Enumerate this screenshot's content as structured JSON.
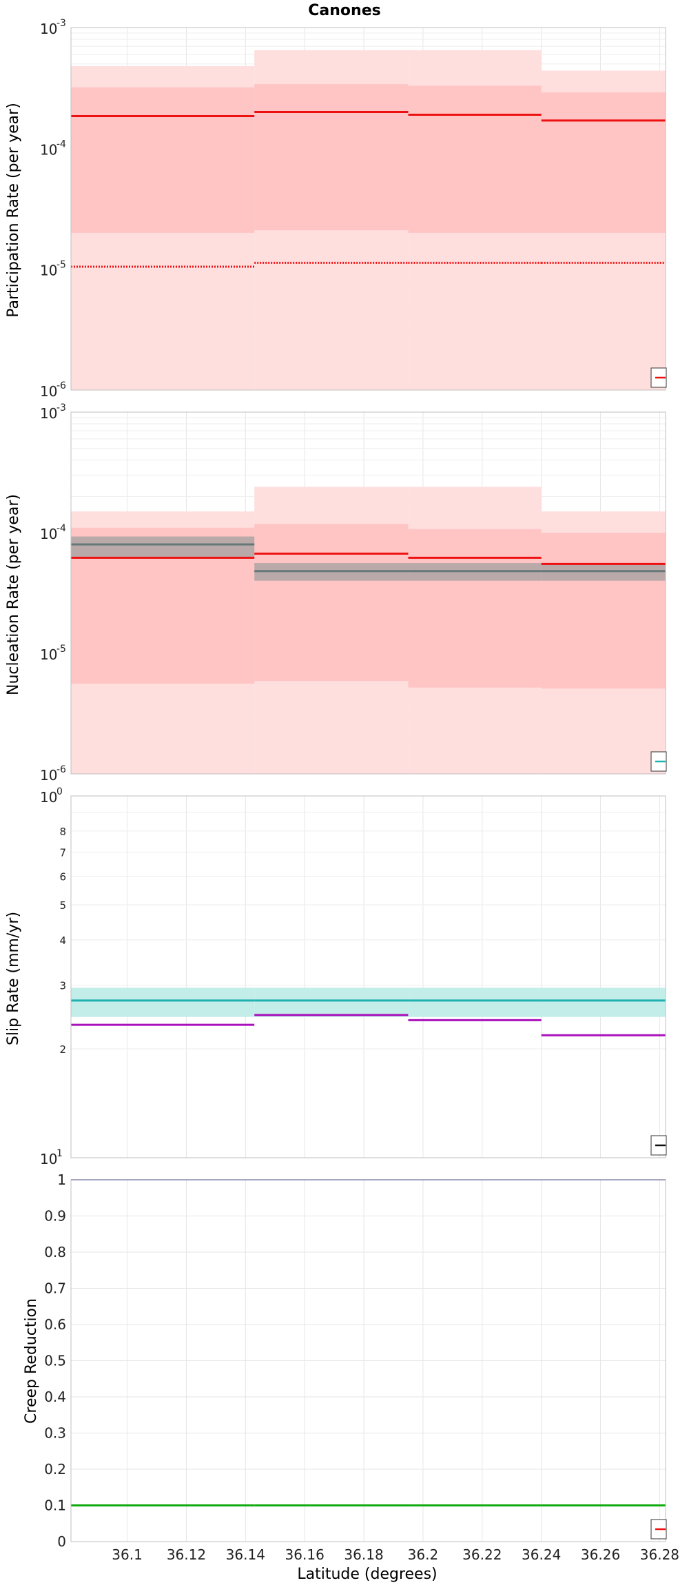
{
  "figure": {
    "title": "Canones",
    "xlabel": "Latitude (degrees)"
  },
  "chart_data": [
    {
      "type": "line",
      "ylabel": "Participation Rate (per year)",
      "yscale": "log",
      "ylim": [
        1e-06,
        0.001
      ],
      "xlim": [
        36.081,
        36.282
      ],
      "x_ticks": [
        36.1,
        36.12,
        36.14,
        36.16,
        36.18,
        36.2,
        36.22,
        36.24,
        36.26,
        36.28
      ],
      "grid": true,
      "legend": "bottom-right",
      "segment_edges": [
        36.081,
        36.143,
        36.195,
        36.24,
        36.282
      ],
      "bands": [
        {
          "color": "#ffdede",
          "lower": [
            1e-06,
            1e-06,
            1e-06,
            1e-06
          ],
          "upper": [
            0.00048,
            0.00065,
            0.00065,
            0.00044
          ]
        },
        {
          "color": "#ffc4c4",
          "lower": [
            2e-05,
            2.1e-05,
            2e-05,
            2e-05
          ],
          "upper": [
            0.00032,
            0.00034,
            0.00033,
            0.00029
          ]
        }
      ],
      "series": [
        {
          "style": "solid",
          "color": "#ee1111",
          "values": [
            0.000185,
            0.0002,
            0.00019,
            0.00017
          ]
        },
        {
          "style": "dotted",
          "color": "#ee1111",
          "values": [
            1.05e-05,
            1.13e-05,
            1.13e-05,
            1.13e-05
          ]
        }
      ]
    },
    {
      "type": "line",
      "ylabel": "Nucleation Rate (per year)",
      "yscale": "log",
      "ylim": [
        1e-06,
        0.001
      ],
      "xlim": [
        36.081,
        36.282
      ],
      "x_ticks": [
        36.1,
        36.12,
        36.14,
        36.16,
        36.18,
        36.2,
        36.22,
        36.24,
        36.26,
        36.28
      ],
      "grid": true,
      "legend": "bottom-right",
      "segment_edges": [
        36.081,
        36.143,
        36.195,
        36.24,
        36.282
      ],
      "bands": [
        {
          "color": "#ffdede",
          "lower": [
            1e-06,
            1e-06,
            1e-06,
            1e-06
          ],
          "upper": [
            0.00015,
            0.00024,
            0.00024,
            0.00015
          ]
        },
        {
          "color": "#ffc4c4",
          "lower": [
            5.6e-06,
            5.9e-06,
            5.2e-06,
            5.1e-06
          ],
          "upper": [
            0.00011,
            0.000118,
            0.000107,
            0.0001
          ]
        },
        {
          "color": "#b9a9a9",
          "lower": [
            6.2e-05,
            4e-05,
            4e-05,
            4e-05
          ],
          "upper": [
            9.3e-05,
            5.6e-05,
            5.6e-05,
            5.6e-05
          ]
        }
      ],
      "series": [
        {
          "style": "solid",
          "color": "#ee1111",
          "values": [
            6.2e-05,
            6.7e-05,
            6.2e-05,
            5.5e-05
          ]
        },
        {
          "style": "solid",
          "color": "#667777",
          "values": [
            8e-05,
            4.8e-05,
            4.8e-05,
            4.8e-05
          ]
        }
      ]
    },
    {
      "type": "line",
      "ylabel": "Slip Rate (mm/yr)",
      "yscale": "log",
      "ylim": [
        1,
        10
      ],
      "xlim": [
        36.081,
        36.282
      ],
      "x_ticks": [
        36.1,
        36.12,
        36.14,
        36.16,
        36.18,
        36.2,
        36.22,
        36.24,
        36.26,
        36.28
      ],
      "grid": true,
      "legend": "bottom-right",
      "segment_edges": [
        36.081,
        36.143,
        36.195,
        36.24,
        36.282
      ],
      "bands": [
        {
          "color": "#c2ede9",
          "lower": [
            2.45,
            2.45,
            2.45,
            2.45
          ],
          "upper": [
            2.95,
            2.95,
            2.95,
            2.95
          ]
        }
      ],
      "series": [
        {
          "style": "solid",
          "color": "#1fb0b0",
          "values": [
            2.72,
            2.72,
            2.72,
            2.72
          ]
        },
        {
          "style": "solid",
          "color": "#aa11bb",
          "values": [
            2.33,
            2.48,
            2.4,
            2.18
          ]
        }
      ]
    },
    {
      "type": "line",
      "ylabel": "Creep Reduction",
      "yscale": "linear",
      "ylim": [
        0,
        1
      ],
      "xlim": [
        36.081,
        36.282
      ],
      "x_ticks": [
        36.1,
        36.12,
        36.14,
        36.16,
        36.18,
        36.2,
        36.22,
        36.24,
        36.26,
        36.28
      ],
      "y_ticks": [
        0,
        0.1,
        0.2,
        0.3,
        0.4,
        0.5,
        0.6,
        0.7,
        0.8,
        0.9,
        1
      ],
      "grid": true,
      "legend": "bottom-right",
      "segment_edges": [
        36.081,
        36.143,
        36.195,
        36.24,
        36.282
      ],
      "bands": [],
      "series": [
        {
          "style": "solid",
          "color": "#1a1a88",
          "values": [
            1,
            1,
            1,
            1
          ]
        },
        {
          "style": "solid",
          "color": "#11aa11",
          "values": [
            0.1,
            0.1,
            0.1,
            0.1
          ]
        }
      ]
    }
  ],
  "tick_labels": {
    "x": [
      "36.1",
      "36.12",
      "36.14",
      "36.16",
      "36.18",
      "36.2",
      "36.22",
      "36.24",
      "36.26",
      "36.28"
    ],
    "log_rate": [
      {
        "base": "10",
        "exp": "-6"
      },
      {
        "base": "10",
        "exp": "-5"
      },
      {
        "base": "10",
        "exp": "-4"
      },
      {
        "base": "10",
        "exp": "-3"
      }
    ],
    "slip_major": [
      {
        "base": "10",
        "exp": "1"
      },
      {
        "base": "10",
        "exp": "0"
      }
    ],
    "slip_minor": [
      "2",
      "3",
      "4",
      "5",
      "6",
      "7",
      "8"
    ],
    "creep": [
      "0",
      "0.1",
      "0.2",
      "0.3",
      "0.4",
      "0.5",
      "0.6",
      "0.7",
      "0.8",
      "0.9",
      "1"
    ]
  },
  "legend_colors": [
    "#ee1111",
    "#1fb0b0",
    "#111111",
    "#ee1111"
  ]
}
